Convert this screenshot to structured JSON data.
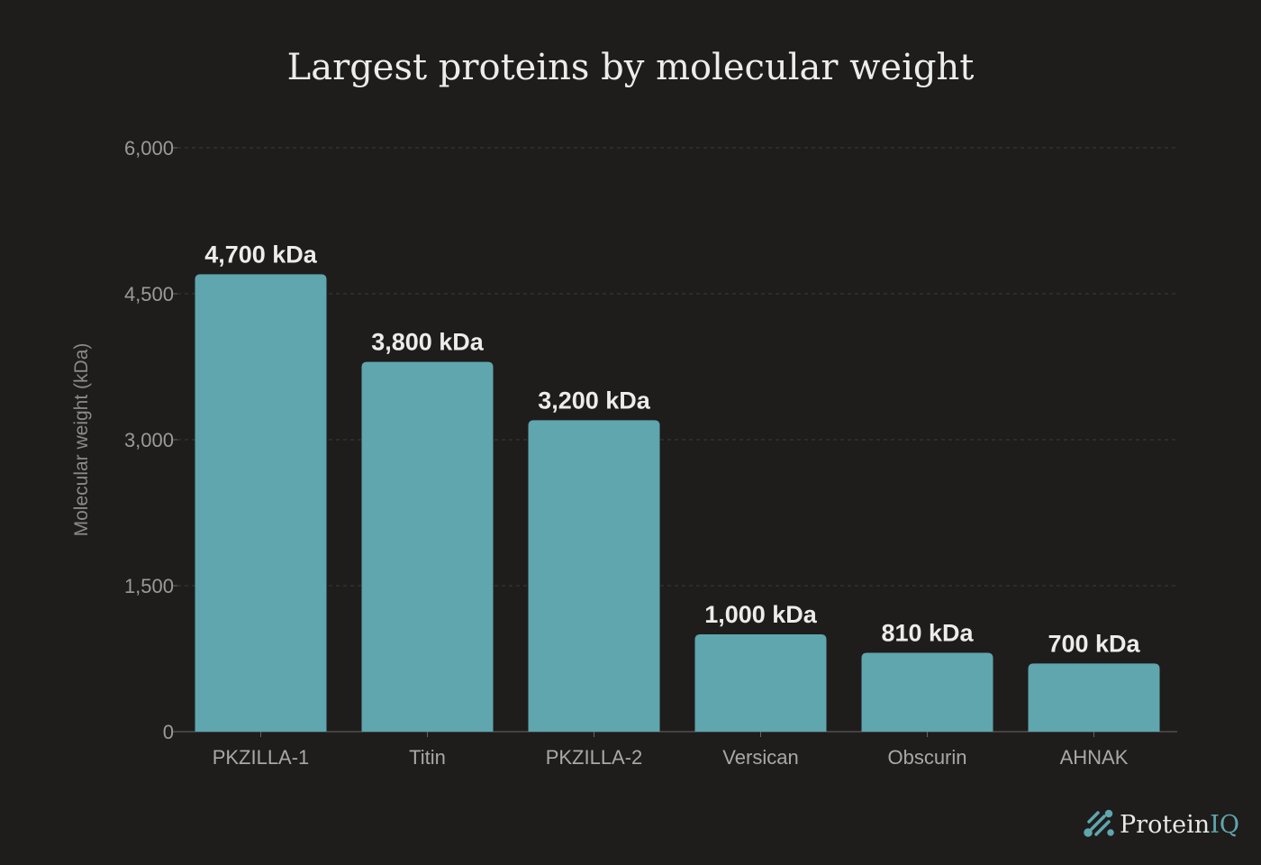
{
  "chart_data": {
    "type": "bar",
    "title": "Largest proteins by molecular weight",
    "xlabel": "",
    "ylabel": "Molecular weight (kDa)",
    "categories": [
      "PKZILLA-1",
      "Titin",
      "PKZILLA-2",
      "Versican",
      "Obscurin",
      "AHNAK"
    ],
    "values": [
      4700,
      3800,
      3200,
      1000,
      810,
      700
    ],
    "data_labels": [
      "4,700 kDa",
      "3,800 kDa",
      "3,200 kDa",
      "1,000 kDa",
      "810 kDa",
      "700 kDa"
    ],
    "yticks": [
      0,
      1500,
      3000,
      4500,
      6000
    ],
    "ytick_labels": [
      "0",
      "1,500",
      "3,000",
      "4,500",
      "6,000"
    ],
    "ylim": [
      0,
      6000
    ],
    "grid": "horizontal dashed",
    "colors": {
      "bar": "#5fa6ae",
      "background": "#1e1d1c"
    }
  },
  "branding": {
    "logo_text": "Protein",
    "logo_accent": "IQ"
  }
}
